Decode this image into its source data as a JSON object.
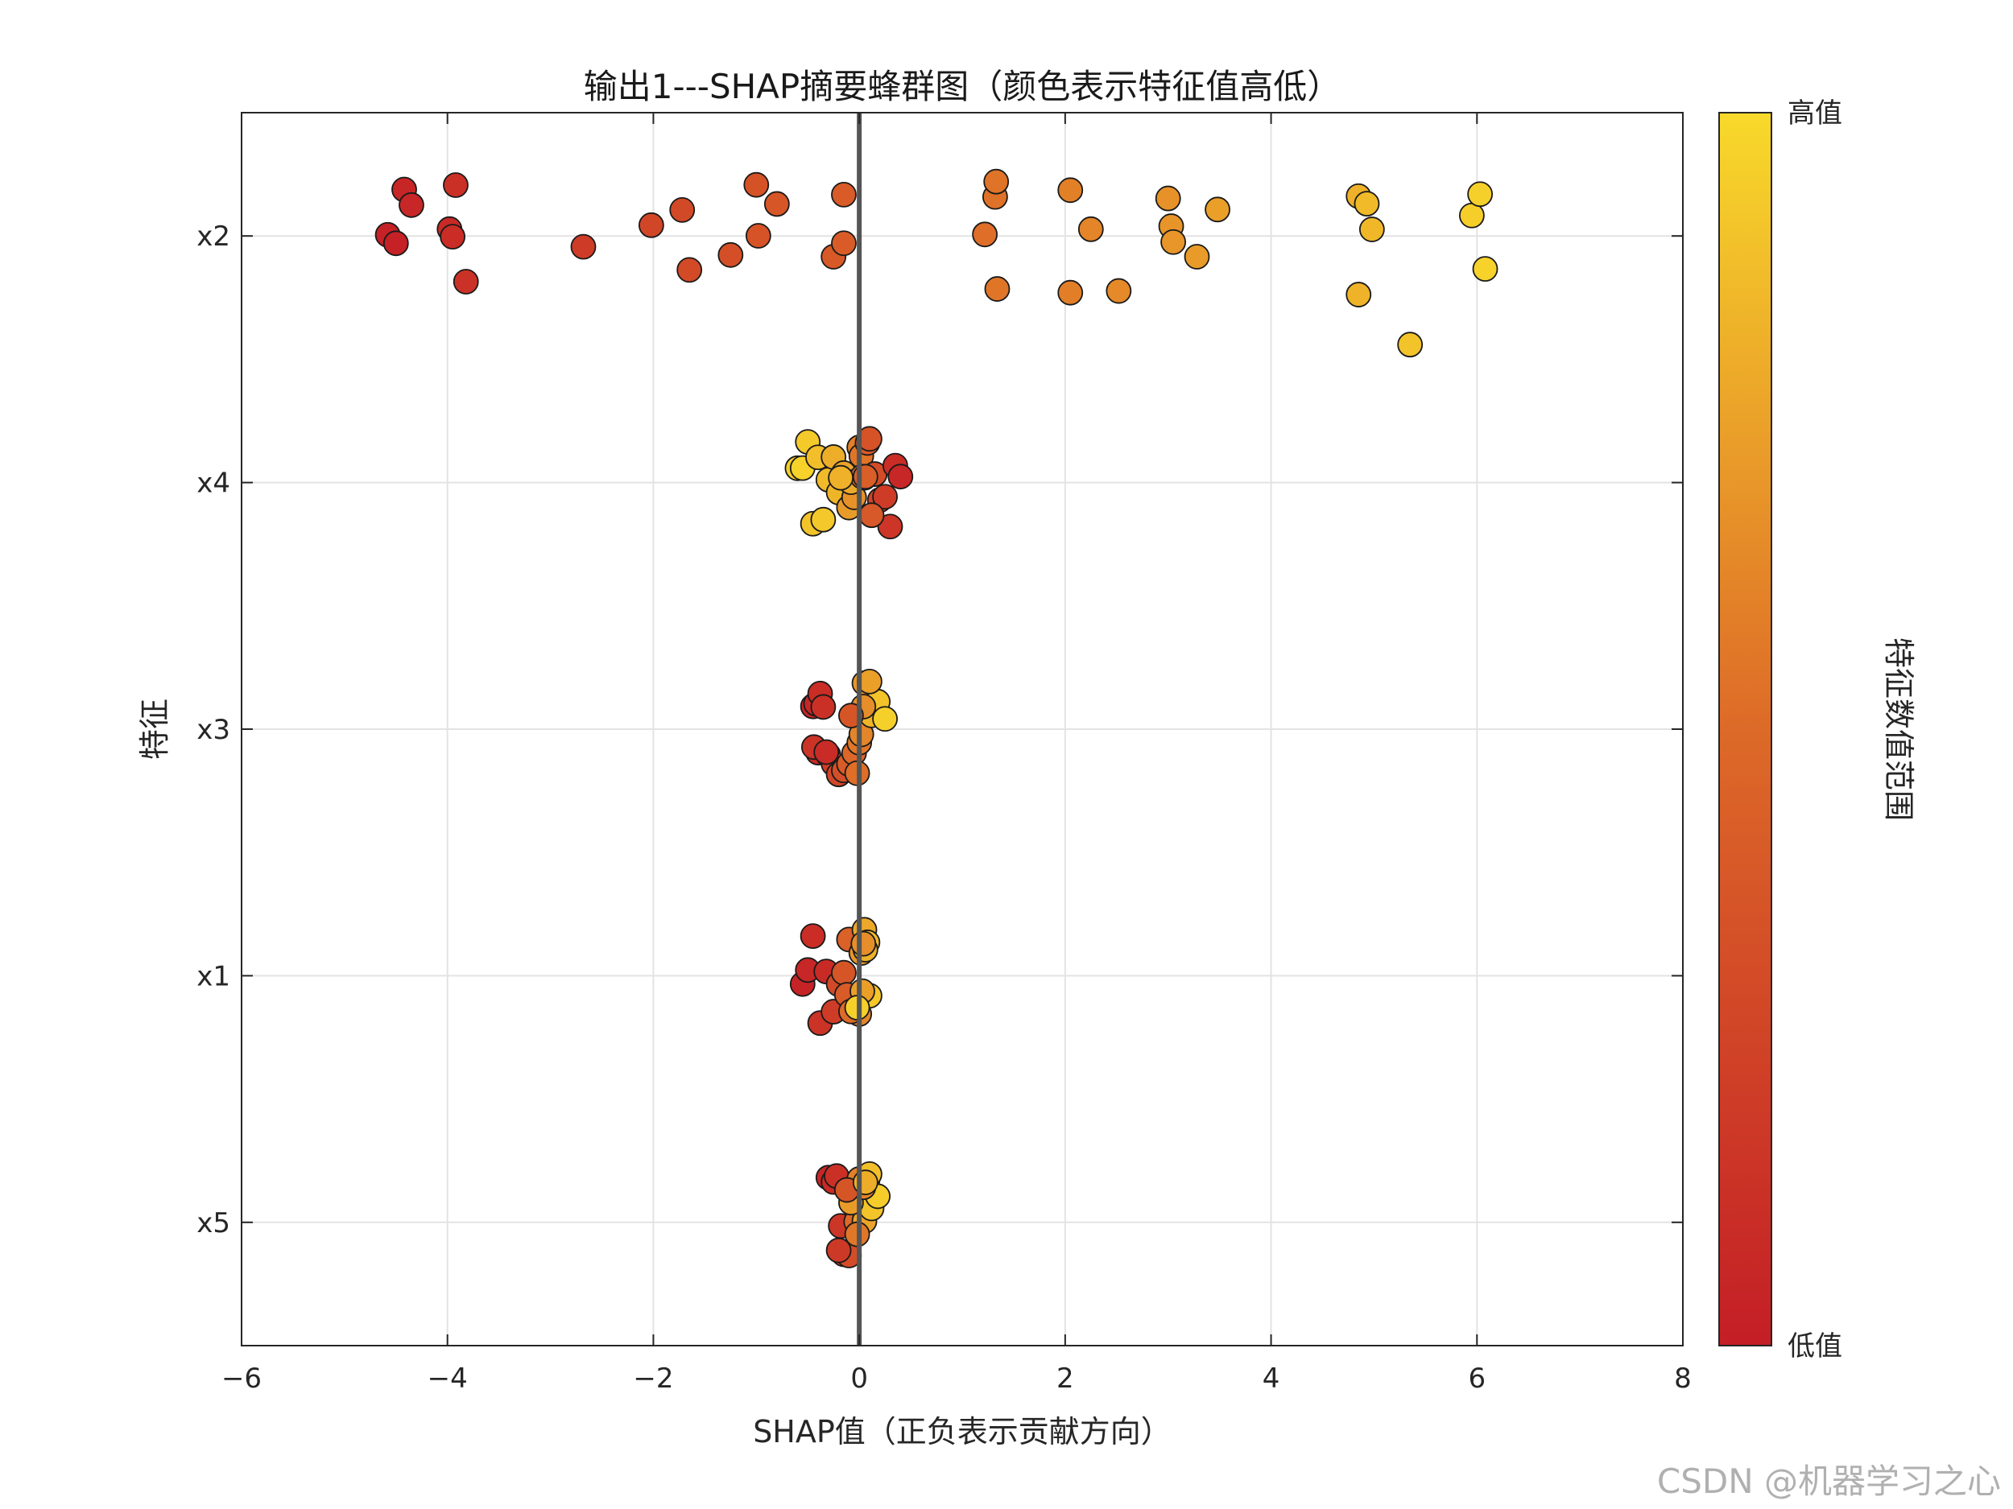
{
  "chart_data": {
    "type": "scatter",
    "title": "输出1---SHAP摘要蜂群图（颜色表示特征值高低）",
    "xlabel": "SHAP值（正负表示贡献方向）",
    "ylabel": "特征",
    "xlim": [
      -6,
      8
    ],
    "xticks": [
      "−6",
      "−4",
      "−2",
      "0",
      "2",
      "4",
      "6",
      "8"
    ],
    "xtick_values": [
      -6,
      -4,
      -2,
      0,
      2,
      4,
      6,
      8
    ],
    "categories": [
      "x2",
      "x4",
      "x3",
      "x1",
      "x5"
    ],
    "grid": true,
    "zero_line": true,
    "colorbar": {
      "label": "特征数值范围",
      "high_label": "高值",
      "low_label": "低值",
      "low_color": "#c41e26",
      "mid_color": "#dd6a28",
      "high_color": "#f8d92a"
    },
    "series": [
      {
        "feature": "x2",
        "points": [
          {
            "x": -4.58,
            "c": 0.02
          },
          {
            "x": -4.5,
            "c": 0.02
          },
          {
            "x": -4.42,
            "c": 0.05
          },
          {
            "x": -4.35,
            "c": 0.06
          },
          {
            "x": -3.98,
            "c": 0.08
          },
          {
            "x": -3.95,
            "c": 0.1
          },
          {
            "x": -3.92,
            "c": 0.12
          },
          {
            "x": -3.82,
            "c": 0.13
          },
          {
            "x": -2.68,
            "c": 0.2
          },
          {
            "x": -2.02,
            "c": 0.26
          },
          {
            "x": -1.72,
            "c": 0.28
          },
          {
            "x": -1.65,
            "c": 0.29
          },
          {
            "x": -1.25,
            "c": 0.32
          },
          {
            "x": -1.0,
            "c": 0.34
          },
          {
            "x": -0.98,
            "c": 0.35
          },
          {
            "x": -0.8,
            "c": 0.37
          },
          {
            "x": -0.25,
            "c": 0.39
          },
          {
            "x": -0.15,
            "c": 0.4
          },
          {
            "x": -0.15,
            "c": 0.41
          },
          {
            "x": 1.22,
            "c": 0.52
          },
          {
            "x": 1.32,
            "c": 0.53
          },
          {
            "x": 1.33,
            "c": 0.54
          },
          {
            "x": 1.34,
            "c": 0.55
          },
          {
            "x": 2.05,
            "c": 0.59
          },
          {
            "x": 2.05,
            "c": 0.6
          },
          {
            "x": 2.25,
            "c": 0.62
          },
          {
            "x": 2.52,
            "c": 0.64
          },
          {
            "x": 3.0,
            "c": 0.68
          },
          {
            "x": 3.03,
            "c": 0.69
          },
          {
            "x": 3.05,
            "c": 0.7
          },
          {
            "x": 3.28,
            "c": 0.72
          },
          {
            "x": 3.48,
            "c": 0.74
          },
          {
            "x": 4.85,
            "c": 0.82
          },
          {
            "x": 4.85,
            "c": 0.83
          },
          {
            "x": 4.98,
            "c": 0.85
          },
          {
            "x": 4.93,
            "c": 0.86
          },
          {
            "x": 5.35,
            "c": 0.9
          },
          {
            "x": 5.95,
            "c": 0.95
          },
          {
            "x": 6.03,
            "c": 0.96
          },
          {
            "x": 6.08,
            "c": 0.97
          }
        ]
      },
      {
        "feature": "x4",
        "points": [
          {
            "x": -0.6,
            "c": 0.95
          },
          {
            "x": -0.55,
            "c": 0.97
          },
          {
            "x": -0.5,
            "c": 0.93
          },
          {
            "x": -0.45,
            "c": 0.9
          },
          {
            "x": -0.4,
            "c": 0.88
          },
          {
            "x": -0.35,
            "c": 0.92
          },
          {
            "x": -0.3,
            "c": 0.86
          },
          {
            "x": -0.25,
            "c": 0.8
          },
          {
            "x": -0.2,
            "c": 0.84
          },
          {
            "x": -0.15,
            "c": 0.76
          },
          {
            "x": -0.1,
            "c": 0.72
          },
          {
            "x": -0.05,
            "c": 0.68
          },
          {
            "x": 0.0,
            "c": 0.6
          },
          {
            "x": 0.02,
            "c": 0.55
          },
          {
            "x": 0.05,
            "c": 0.45
          },
          {
            "x": 0.08,
            "c": 0.4
          },
          {
            "x": 0.1,
            "c": 0.35
          },
          {
            "x": 0.15,
            "c": 0.3
          },
          {
            "x": 0.2,
            "c": 0.25
          },
          {
            "x": 0.25,
            "c": 0.2
          },
          {
            "x": 0.3,
            "c": 0.15
          },
          {
            "x": 0.35,
            "c": 0.1
          },
          {
            "x": 0.4,
            "c": 0.06
          },
          {
            "x": -0.08,
            "c": 0.78
          },
          {
            "x": 0.03,
            "c": 0.5
          },
          {
            "x": 0.12,
            "c": 0.38
          },
          {
            "x": -0.18,
            "c": 0.82
          },
          {
            "x": 0.06,
            "c": 0.42
          }
        ]
      },
      {
        "feature": "x3",
        "points": [
          {
            "x": -0.45,
            "c": 0.04
          },
          {
            "x": -0.42,
            "c": 0.06
          },
          {
            "x": -0.4,
            "c": 0.08
          },
          {
            "x": -0.38,
            "c": 0.1
          },
          {
            "x": -0.35,
            "c": 0.12
          },
          {
            "x": -0.3,
            "c": 0.16
          },
          {
            "x": -0.25,
            "c": 0.2
          },
          {
            "x": -0.2,
            "c": 0.26
          },
          {
            "x": -0.15,
            "c": 0.32
          },
          {
            "x": -0.1,
            "c": 0.4
          },
          {
            "x": -0.05,
            "c": 0.48
          },
          {
            "x": 0.0,
            "c": 0.56
          },
          {
            "x": 0.02,
            "c": 0.62
          },
          {
            "x": 0.05,
            "c": 0.7
          },
          {
            "x": 0.08,
            "c": 0.78
          },
          {
            "x": 0.12,
            "c": 0.84
          },
          {
            "x": 0.18,
            "c": 0.9
          },
          {
            "x": 0.25,
            "c": 0.96
          },
          {
            "x": -0.44,
            "c": 0.14
          },
          {
            "x": -0.32,
            "c": 0.09
          },
          {
            "x": 0.04,
            "c": 0.66
          },
          {
            "x": -0.02,
            "c": 0.52
          },
          {
            "x": 0.1,
            "c": 0.74
          },
          {
            "x": -0.08,
            "c": 0.36
          }
        ]
      },
      {
        "feature": "x1",
        "points": [
          {
            "x": -0.55,
            "c": 0.03
          },
          {
            "x": -0.5,
            "c": 0.06
          },
          {
            "x": -0.45,
            "c": 0.1
          },
          {
            "x": -0.38,
            "c": 0.14
          },
          {
            "x": -0.32,
            "c": 0.08
          },
          {
            "x": -0.25,
            "c": 0.2
          },
          {
            "x": -0.2,
            "c": 0.28
          },
          {
            "x": -0.15,
            "c": 0.36
          },
          {
            "x": -0.1,
            "c": 0.44
          },
          {
            "x": -0.05,
            "c": 0.54
          },
          {
            "x": 0.0,
            "c": 0.62
          },
          {
            "x": 0.02,
            "c": 0.7
          },
          {
            "x": 0.05,
            "c": 0.78
          },
          {
            "x": 0.08,
            "c": 0.86
          },
          {
            "x": 0.1,
            "c": 0.92
          },
          {
            "x": -0.12,
            "c": 0.4
          },
          {
            "x": 0.03,
            "c": 0.74
          },
          {
            "x": -0.08,
            "c": 0.5
          },
          {
            "x": 0.06,
            "c": 0.82
          },
          {
            "x": -0.02,
            "c": 0.96
          },
          {
            "x": 0.04,
            "c": 0.66
          }
        ]
      },
      {
        "feature": "x5",
        "points": [
          {
            "x": -0.3,
            "c": 0.05
          },
          {
            "x": -0.25,
            "c": 0.08
          },
          {
            "x": -0.22,
            "c": 0.12
          },
          {
            "x": -0.18,
            "c": 0.16
          },
          {
            "x": -0.15,
            "c": 0.22
          },
          {
            "x": -0.1,
            "c": 0.3
          },
          {
            "x": -0.06,
            "c": 0.4
          },
          {
            "x": -0.03,
            "c": 0.5
          },
          {
            "x": 0.0,
            "c": 0.6
          },
          {
            "x": 0.02,
            "c": 0.68
          },
          {
            "x": 0.05,
            "c": 0.76
          },
          {
            "x": 0.08,
            "c": 0.84
          },
          {
            "x": 0.12,
            "c": 0.9
          },
          {
            "x": 0.18,
            "c": 0.94
          },
          {
            "x": -0.08,
            "c": 0.72
          },
          {
            "x": -0.2,
            "c": 0.18
          },
          {
            "x": 0.04,
            "c": 0.62
          },
          {
            "x": -0.12,
            "c": 0.36
          },
          {
            "x": 0.1,
            "c": 0.88
          },
          {
            "x": -0.02,
            "c": 0.56
          },
          {
            "x": 0.06,
            "c": 0.8
          }
        ]
      }
    ]
  },
  "watermark": "CSDN @机器学习之心"
}
